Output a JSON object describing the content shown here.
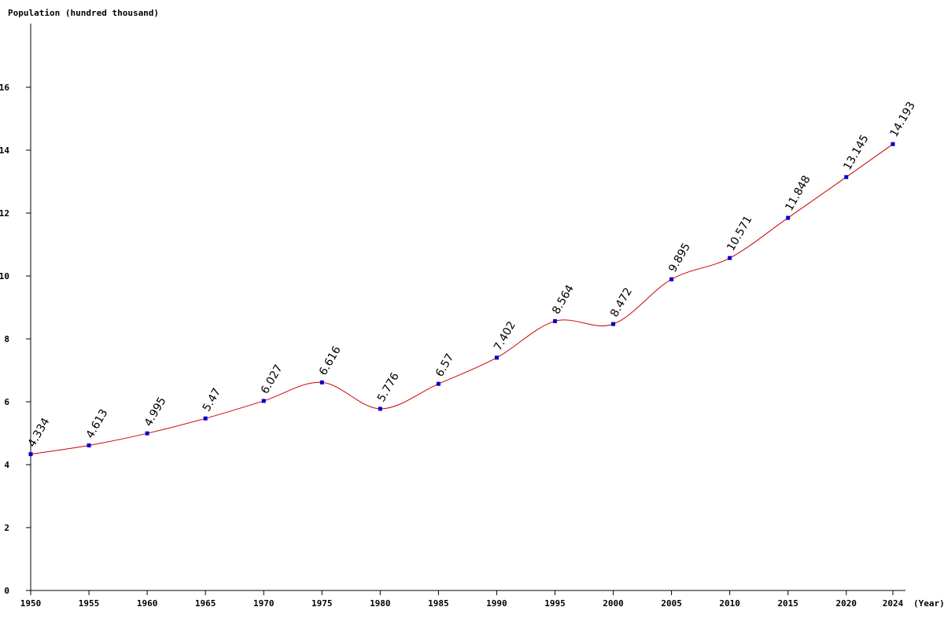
{
  "chart_data": {
    "type": "line",
    "ylabel": "Population (hundred thousand)",
    "xlabel": "(Year)",
    "x": [
      1950,
      1955,
      1960,
      1965,
      1970,
      1975,
      1980,
      1985,
      1990,
      1995,
      2000,
      2005,
      2010,
      2015,
      2020,
      2024
    ],
    "series": [
      {
        "values": [
          4.334,
          4.613,
          4.995,
          5.47,
          6.027,
          6.616,
          5.776,
          6.57,
          7.402,
          8.564,
          8.472,
          9.895,
          10.571,
          11.848,
          13.145,
          14.193
        ],
        "labels": [
          "4.334",
          "4.613",
          "4.995",
          "5.47",
          "6.027",
          "6.616",
          "5.776",
          "6.57",
          "7.402",
          "8.564",
          "8.472",
          "9.895",
          "10.571",
          "11.848",
          "13.145",
          "14.193"
        ]
      }
    ],
    "xticks": [
      "1950",
      "1955",
      "1960",
      "1965",
      "1970",
      "1975",
      "1980",
      "1985",
      "1990",
      "1995",
      "2000",
      "2005",
      "2010",
      "2015",
      "2020",
      "2024"
    ],
    "yticks": [
      0,
      2,
      4,
      6,
      8,
      10,
      12,
      14,
      16
    ],
    "ylim": [
      0,
      18
    ],
    "xlim": [
      1950,
      2024
    ],
    "grid": false,
    "colors": {
      "line": "#cc0000",
      "marker": "#0000cc",
      "axis": "#000000"
    }
  }
}
